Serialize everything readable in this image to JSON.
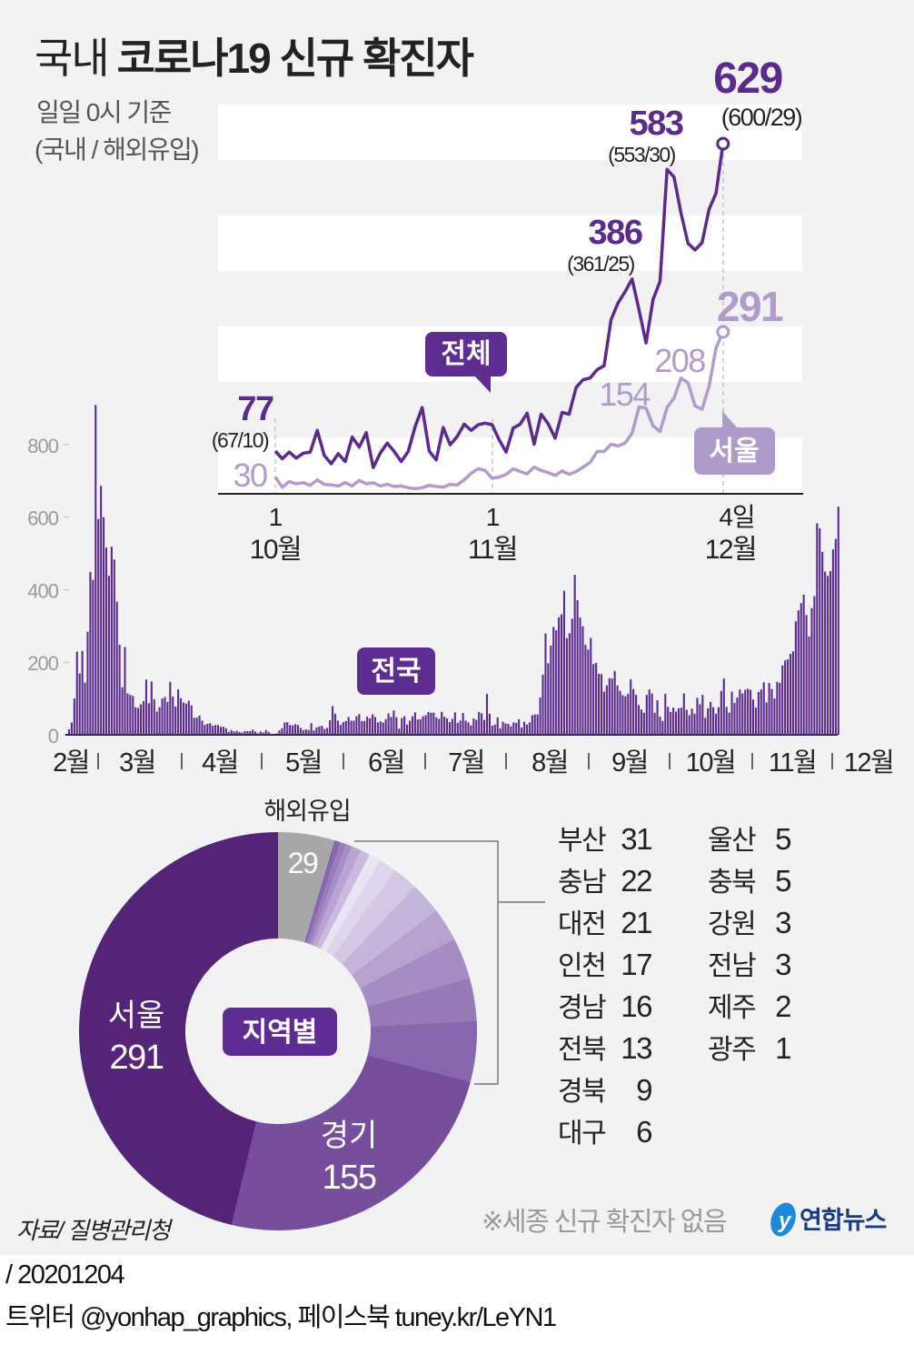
{
  "header": {
    "title_light": "국내",
    "title_bold": "코로나19 신규 확진자",
    "subtitle_1": "일일 0시 기준",
    "subtitle_2": "(국내 / 해외유입)"
  },
  "colors": {
    "background": "#f2f2f4",
    "total_line": "#5c2a8c",
    "seoul_line": "#b19bcb",
    "bar": "#5c2a8c",
    "label_box": "#5f2d91"
  },
  "chart_data": [
    {
      "type": "line",
      "x_ticks": [
        {
          "day": "1",
          "month": "10월"
        },
        {
          "day": "1",
          "month": "11월"
        },
        {
          "day": "4일",
          "month": "12월"
        }
      ],
      "ylim": [
        0,
        700
      ],
      "grid": "banded",
      "series": [
        {
          "name": "전체",
          "values": [
            77,
            63,
            75,
            64,
            73,
            75,
            114,
            69,
            54,
            72,
            58,
            102,
            84,
            110,
            47,
            73,
            91,
            76,
            58,
            76,
            121,
            155,
            77,
            61,
            119,
            88,
            103,
            125,
            114,
            124,
            127,
            124,
            97,
            75,
            118,
            125,
            145,
            89,
            143,
            126,
            100,
            146,
            143,
            191,
            205,
            208,
            223,
            230,
            313,
            343,
            363,
            386,
            330,
            271,
            349,
            382,
            583,
            569,
            504,
            450,
            438,
            451,
            511,
            540,
            629
          ]
        },
        {
          "name": "서울",
          "values": [
            30,
            12,
            22,
            18,
            20,
            15,
            25,
            17,
            16,
            14,
            20,
            14,
            24,
            18,
            20,
            14,
            17,
            13,
            14,
            11,
            9,
            11,
            15,
            13,
            12,
            17,
            16,
            25,
            37,
            45,
            42,
            28,
            30,
            35,
            45,
            40,
            36,
            48,
            42,
            38,
            33,
            41,
            35,
            40,
            48,
            56,
            76,
            76,
            89,
            86,
            91,
            109,
            156,
            154,
            122,
            112,
            155,
            172,
            208,
            199,
            158,
            152,
            193,
            262,
            291
          ]
        }
      ],
      "annotations": [
        {
          "value": "77",
          "detail": "(67/10)"
        },
        {
          "value": "30"
        },
        {
          "value": "386",
          "detail": "(361/25)"
        },
        {
          "value": "583",
          "detail": "(553/30)"
        },
        {
          "value": "629",
          "detail": "(600/29)"
        },
        {
          "value": "154"
        },
        {
          "value": "208"
        },
        {
          "value": "291"
        }
      ]
    },
    {
      "type": "bar",
      "name": "전국",
      "ylim": [
        0,
        900
      ],
      "y_ticks": [
        "0",
        "200",
        "400",
        "600",
        "800"
      ],
      "x_ticks": [
        "2월",
        "3월",
        "4월",
        "5월",
        "6월",
        "7월",
        "8월",
        "9월",
        "10월",
        "11월",
        "12월"
      ],
      "values": [
        1,
        15,
        34,
        100,
        229,
        169,
        231,
        144,
        284,
        449,
        427,
        909,
        595,
        686,
        600,
        516,
        438,
        518,
        483,
        367,
        248,
        131,
        242,
        114,
        110,
        107,
        76,
        74,
        84,
        93,
        152,
        87,
        147,
        98,
        64,
        76,
        100,
        104,
        91,
        146,
        105,
        78,
        125,
        101,
        89,
        86,
        94,
        81,
        47,
        47,
        53,
        39,
        27,
        30,
        32,
        25,
        27,
        27,
        22,
        22,
        18,
        8,
        13,
        9,
        11,
        8,
        6,
        10,
        10,
        10,
        14,
        9,
        4,
        9,
        6,
        13,
        8,
        3,
        2,
        4,
        12,
        18,
        34,
        35,
        27,
        26,
        29,
        27,
        19,
        13,
        15,
        13,
        32,
        12,
        20,
        23,
        25,
        16,
        19,
        40,
        79,
        58,
        39,
        27,
        35,
        38,
        49,
        39,
        39,
        51,
        57,
        38,
        38,
        50,
        45,
        56,
        49,
        34,
        37,
        34,
        43,
        59,
        49,
        67,
        48,
        17,
        46,
        51,
        28,
        39,
        51,
        62,
        42,
        43,
        51,
        54,
        63,
        61,
        61,
        48,
        44,
        63,
        50,
        45,
        35,
        44,
        62,
        33,
        39,
        60,
        39,
        34,
        26,
        45,
        41,
        63,
        59,
        41,
        113,
        58,
        25,
        28,
        48,
        18,
        36,
        31,
        30,
        23,
        34,
        33,
        43,
        20,
        36,
        28,
        34,
        54,
        56,
        56,
        103,
        166,
        279,
        197,
        246,
        297,
        288,
        324,
        332,
        397,
        266,
        280,
        320,
        441,
        371,
        323,
        299,
        248,
        235,
        267,
        195,
        198,
        168,
        167,
        119,
        136,
        156,
        155,
        176,
        136,
        121,
        109,
        106,
        113,
        153,
        126,
        110,
        82,
        70,
        61,
        110,
        125,
        114,
        61,
        95,
        50,
        38,
        113,
        77,
        63,
        75,
        64,
        73,
        75,
        114,
        69,
        54,
        72,
        58,
        102,
        84,
        110,
        47,
        73,
        91,
        76,
        58,
        76,
        121,
        155,
        77,
        61,
        119,
        88,
        103,
        125,
        114,
        124,
        127,
        124,
        97,
        75,
        118,
        125,
        145,
        89,
        143,
        126,
        100,
        146,
        143,
        191,
        205,
        208,
        223,
        230,
        313,
        343,
        363,
        386,
        330,
        271,
        349,
        382,
        583,
        569,
        504,
        450,
        438,
        451,
        511,
        540,
        629
      ]
    },
    {
      "type": "pie",
      "name": "지역별",
      "slices": [
        {
          "label": "해외유입",
          "value": 29,
          "color": "#a7a7aa"
        },
        {
          "label": "광주",
          "value": 1,
          "color": "#7d57a8"
        },
        {
          "label": "제주",
          "value": 2,
          "color": "#8a67b2"
        },
        {
          "label": "전남",
          "value": 3,
          "color": "#9a7cbd"
        },
        {
          "label": "강원",
          "value": 3,
          "color": "#a78dc6"
        },
        {
          "label": "충북",
          "value": 5,
          "color": "#b9a3d2"
        },
        {
          "label": "울산",
          "value": 5,
          "color": "#cabadf"
        },
        {
          "label": "대구",
          "value": 6,
          "color": "#ebe4f2"
        },
        {
          "label": "경북",
          "value": 9,
          "color": "#e0d6ec"
        },
        {
          "label": "전북",
          "value": 13,
          "color": "#d4c7e4"
        },
        {
          "label": "경남",
          "value": 16,
          "color": "#c6b5da"
        },
        {
          "label": "인천",
          "value": 17,
          "color": "#b7a1cf"
        },
        {
          "label": "대전",
          "value": 21,
          "color": "#a58dc3"
        },
        {
          "label": "충남",
          "value": 22,
          "color": "#977bb9"
        },
        {
          "label": "부산",
          "value": 31,
          "color": "#8766ad"
        },
        {
          "label": "경기",
          "value": 155,
          "color": "#774e9c"
        },
        {
          "label": "서울",
          "value": 291,
          "color": "#552478"
        }
      ]
    }
  ],
  "line_labels": {
    "total": "전체",
    "seoul": "서울"
  },
  "bar_label": "전국",
  "pie": {
    "center_label": "지역별",
    "foreign_label": "해외유입",
    "foreign_value": "29",
    "seoul_label": "서울",
    "seoul_value": "291",
    "gyeonggi_label": "경기",
    "gyeonggi_value": "155"
  },
  "region_list": {
    "left": [
      {
        "name": "부산",
        "value": "31"
      },
      {
        "name": "충남",
        "value": "22"
      },
      {
        "name": "대전",
        "value": "21"
      },
      {
        "name": "인천",
        "value": "17"
      },
      {
        "name": "경남",
        "value": "16"
      },
      {
        "name": "전북",
        "value": "13"
      },
      {
        "name": "경북",
        "value": "9"
      },
      {
        "name": "대구",
        "value": "6"
      }
    ],
    "right": [
      {
        "name": "울산",
        "value": "5"
      },
      {
        "name": "충북",
        "value": "5"
      },
      {
        "name": "강원",
        "value": "3"
      },
      {
        "name": "전남",
        "value": "3"
      },
      {
        "name": "제주",
        "value": "2"
      },
      {
        "name": "광주",
        "value": "1"
      }
    ]
  },
  "notes": {
    "source": "자료/ 질병관리청",
    "sejong": "※세종 신규 확진자 없음",
    "logo": "연합뉴스"
  },
  "footer": {
    "date": "/ 20201204",
    "social": "트위터 @yonhap_graphics, 페이스북 tuney.kr/LeYN1"
  }
}
